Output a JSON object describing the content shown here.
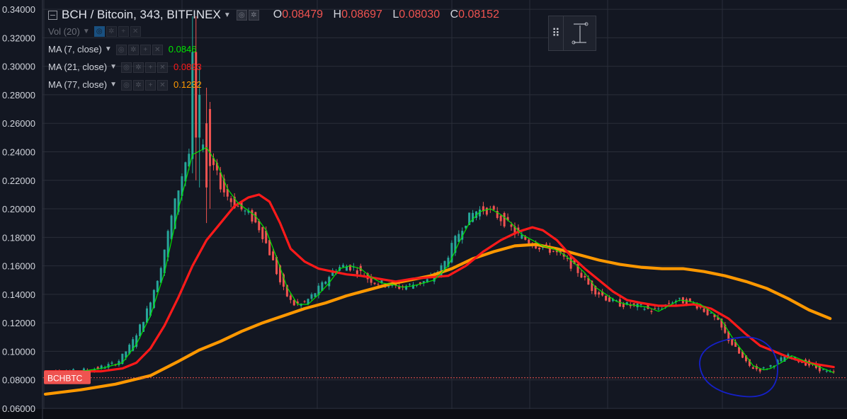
{
  "header": {
    "symbol_title": "BCH / Bitcoin, 343, BITFINEX",
    "ohlc": [
      {
        "key": "O",
        "value": "0.08479"
      },
      {
        "key": "H",
        "value": "0.08697"
      },
      {
        "key": "L",
        "value": "0.08030"
      },
      {
        "key": "C",
        "value": "0.08152"
      }
    ]
  },
  "indicators": {
    "vol": {
      "label": "Vol (20)"
    },
    "ma7": {
      "label": "MA (7, close)",
      "value": "0.0846",
      "color": "#00e600"
    },
    "ma21": {
      "label": "MA (21, close)",
      "value": "0.0893",
      "color": "#ff1a1a"
    },
    "ma77": {
      "label": "MA (77, close)",
      "value": "0.1232",
      "color": "#ff9800"
    }
  },
  "price_tag": {
    "label": "BCHBTC",
    "value": 0.0815,
    "color": "#ef5350"
  },
  "colors": {
    "background": "#131722",
    "grid": "#2a2e39",
    "up": "#26a69a",
    "down": "#ef5350",
    "annotation": "#1520c8"
  },
  "toolbar_icons": [
    "grip-icon",
    "trend-line-icon"
  ],
  "chart_data": {
    "type": "candlestick",
    "y_axis": {
      "ticks": [
        "0.34000",
        "0.32000",
        "0.30000",
        "0.28000",
        "0.26000",
        "0.24000",
        "0.22000",
        "0.20000",
        "0.18000",
        "0.16000",
        "0.14000",
        "0.12000",
        "0.10000",
        "0.08000",
        "0.06000"
      ],
      "ylim": [
        0.0595,
        0.3465
      ],
      "position": "left"
    },
    "grid": true,
    "series": [
      {
        "name": "MA (7, close)",
        "color": "#00e600",
        "points": [
          [
            0,
            0.086
          ],
          [
            10,
            0.086
          ],
          [
            16,
            0.088
          ],
          [
            22,
            0.092
          ],
          [
            26,
            0.105
          ],
          [
            30,
            0.125
          ],
          [
            34,
            0.155
          ],
          [
            38,
            0.2
          ],
          [
            42,
            0.238
          ],
          [
            46,
            0.243
          ],
          [
            49,
            0.232
          ],
          [
            52,
            0.214
          ],
          [
            55,
            0.204
          ],
          [
            60,
            0.195
          ],
          [
            63,
            0.185
          ],
          [
            66,
            0.166
          ],
          [
            69,
            0.145
          ],
          [
            72,
            0.133
          ],
          [
            75,
            0.133
          ],
          [
            78,
            0.14
          ],
          [
            81,
            0.148
          ],
          [
            84,
            0.158
          ],
          [
            87,
            0.16
          ],
          [
            90,
            0.158
          ],
          [
            93,
            0.152
          ],
          [
            96,
            0.148
          ],
          [
            99,
            0.147
          ],
          [
            102,
            0.145
          ],
          [
            105,
            0.146
          ],
          [
            108,
            0.148
          ],
          [
            111,
            0.15
          ],
          [
            113,
            0.155
          ],
          [
            115,
            0.16
          ],
          [
            118,
            0.176
          ],
          [
            121,
            0.19
          ],
          [
            124,
            0.198
          ],
          [
            127,
            0.2
          ],
          [
            130,
            0.196
          ],
          [
            133,
            0.19
          ],
          [
            136,
            0.182
          ],
          [
            139,
            0.178
          ],
          [
            142,
            0.174
          ],
          [
            145,
            0.172
          ],
          [
            148,
            0.168
          ],
          [
            151,
            0.162
          ],
          [
            154,
            0.155
          ],
          [
            157,
            0.145
          ],
          [
            160,
            0.14
          ],
          [
            163,
            0.135
          ],
          [
            166,
            0.133
          ],
          [
            169,
            0.132
          ],
          [
            172,
            0.131
          ],
          [
            175,
            0.128
          ],
          [
            178,
            0.132
          ],
          [
            181,
            0.136
          ],
          [
            184,
            0.135
          ],
          [
            187,
            0.133
          ],
          [
            190,
            0.128
          ],
          [
            193,
            0.122
          ],
          [
            196,
            0.11
          ],
          [
            199,
            0.1
          ],
          [
            202,
            0.09
          ],
          [
            205,
            0.087
          ],
          [
            207,
            0.088
          ],
          [
            210,
            0.092
          ],
          [
            213,
            0.097
          ],
          [
            216,
            0.094
          ],
          [
            219,
            0.091
          ],
          [
            222,
            0.088
          ],
          [
            225,
            0.085
          ]
        ]
      },
      {
        "name": "MA (21, close)",
        "color": "#ff1a1a",
        "points": [
          [
            0,
            0.086
          ],
          [
            16,
            0.086
          ],
          [
            22,
            0.088
          ],
          [
            26,
            0.092
          ],
          [
            30,
            0.102
          ],
          [
            34,
            0.118
          ],
          [
            38,
            0.138
          ],
          [
            42,
            0.16
          ],
          [
            46,
            0.178
          ],
          [
            50,
            0.19
          ],
          [
            54,
            0.202
          ],
          [
            58,
            0.208
          ],
          [
            61,
            0.21
          ],
          [
            64,
            0.205
          ],
          [
            67,
            0.19
          ],
          [
            70,
            0.172
          ],
          [
            74,
            0.163
          ],
          [
            78,
            0.158
          ],
          [
            82,
            0.156
          ],
          [
            86,
            0.154
          ],
          [
            90,
            0.153
          ],
          [
            95,
            0.151
          ],
          [
            100,
            0.149
          ],
          [
            105,
            0.151
          ],
          [
            110,
            0.152
          ],
          [
            115,
            0.153
          ],
          [
            120,
            0.16
          ],
          [
            125,
            0.17
          ],
          [
            130,
            0.178
          ],
          [
            135,
            0.184
          ],
          [
            139,
            0.187
          ],
          [
            142,
            0.185
          ],
          [
            146,
            0.178
          ],
          [
            150,
            0.167
          ],
          [
            154,
            0.158
          ],
          [
            158,
            0.15
          ],
          [
            162,
            0.142
          ],
          [
            166,
            0.136
          ],
          [
            170,
            0.134
          ],
          [
            175,
            0.132
          ],
          [
            180,
            0.132
          ],
          [
            185,
            0.133
          ],
          [
            190,
            0.13
          ],
          [
            195,
            0.123
          ],
          [
            200,
            0.112
          ],
          [
            204,
            0.104
          ],
          [
            208,
            0.1
          ],
          [
            212,
            0.096
          ],
          [
            216,
            0.093
          ],
          [
            220,
            0.091
          ],
          [
            225,
            0.089
          ]
        ]
      },
      {
        "name": "MA (77, close)",
        "color": "#ff9800",
        "points": [
          [
            0,
            0.07
          ],
          [
            10,
            0.073
          ],
          [
            20,
            0.077
          ],
          [
            30,
            0.083
          ],
          [
            38,
            0.093
          ],
          [
            44,
            0.101
          ],
          [
            50,
            0.107
          ],
          [
            56,
            0.114
          ],
          [
            62,
            0.12
          ],
          [
            68,
            0.125
          ],
          [
            74,
            0.13
          ],
          [
            80,
            0.134
          ],
          [
            86,
            0.139
          ],
          [
            92,
            0.143
          ],
          [
            98,
            0.147
          ],
          [
            104,
            0.15
          ],
          [
            110,
            0.153
          ],
          [
            116,
            0.158
          ],
          [
            122,
            0.165
          ],
          [
            128,
            0.17
          ],
          [
            134,
            0.174
          ],
          [
            140,
            0.175
          ],
          [
            146,
            0.172
          ],
          [
            152,
            0.168
          ],
          [
            158,
            0.164
          ],
          [
            164,
            0.161
          ],
          [
            170,
            0.159
          ],
          [
            176,
            0.158
          ],
          [
            182,
            0.158
          ],
          [
            188,
            0.156
          ],
          [
            194,
            0.153
          ],
          [
            200,
            0.149
          ],
          [
            206,
            0.144
          ],
          [
            212,
            0.137
          ],
          [
            218,
            0.129
          ],
          [
            224,
            0.123
          ]
        ]
      }
    ],
    "annotation": {
      "type": "ellipse",
      "label": "",
      "color": "#1520c8"
    }
  }
}
